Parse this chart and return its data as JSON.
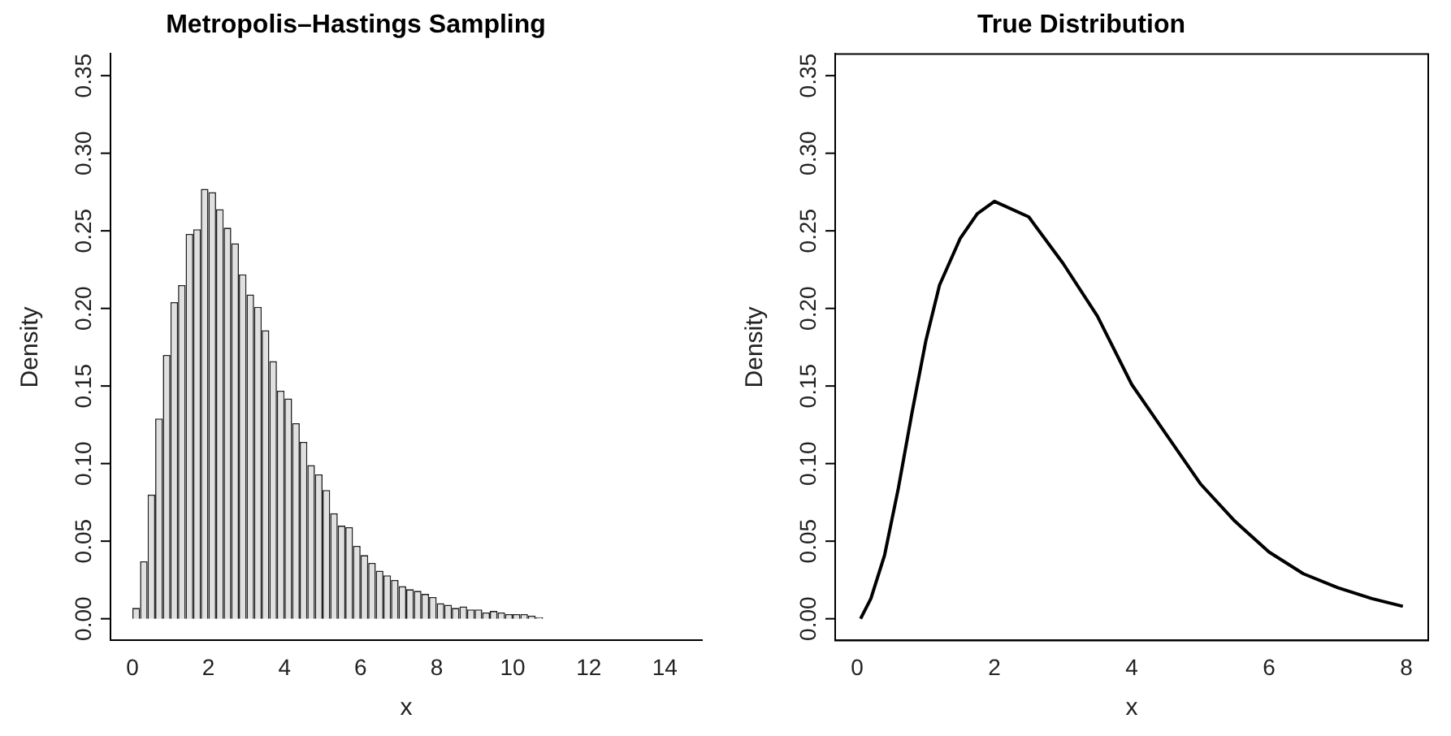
{
  "chart_data": [
    {
      "type": "histogram",
      "title": "Metropolis–Hastings Sampling",
      "xlabel": "x",
      "ylabel": "Density",
      "color": "#e0e0e0",
      "bins": [
        0,
        0.2,
        0.4,
        0.6,
        0.8,
        1,
        1.2,
        1.4,
        1.6,
        1.8,
        2,
        2.2,
        2.4,
        2.6,
        2.8,
        3,
        3.2,
        3.4,
        3.6,
        3.8,
        4,
        4.2,
        4.4,
        4.6,
        4.8,
        5,
        5.2,
        5.4,
        5.6,
        5.8,
        6,
        6.2,
        6.4,
        6.6,
        6.8,
        7,
        7.2,
        7.4,
        7.6,
        7.8,
        8,
        8.2,
        8.4,
        8.6,
        8.8,
        9,
        9.2,
        9.4,
        9.6,
        9.8,
        10,
        10.2,
        10.4,
        10.6,
        10.8,
        11,
        11.2,
        11.4,
        11.6,
        11.8,
        12,
        12.2,
        12.4,
        12.6,
        12.8,
        13,
        13.2,
        13.4,
        13.6,
        13.8,
        14,
        14.2,
        14.4
      ],
      "values": [
        0.007,
        0.037,
        0.08,
        0.129,
        0.17,
        0.204,
        0.215,
        0.248,
        0.251,
        0.277,
        0.275,
        0.264,
        0.252,
        0.242,
        0.222,
        0.209,
        0.201,
        0.186,
        0.166,
        0.147,
        0.142,
        0.126,
        0.114,
        0.099,
        0.093,
        0.083,
        0.068,
        0.06,
        0.059,
        0.047,
        0.041,
        0.036,
        0.031,
        0.028,
        0.025,
        0.021,
        0.019,
        0.018,
        0.016,
        0.014,
        0.01,
        0.009,
        0.007,
        0.008,
        0.006,
        0.006,
        0.004,
        0.005,
        0.004,
        0.003,
        0.003,
        0.003,
        0.002,
        0.001,
        0,
        0,
        0,
        0,
        0,
        0,
        0,
        0,
        0,
        0,
        0,
        0,
        0,
        0,
        0,
        0,
        0,
        0
      ],
      "xlim": [
        -0.576,
        14.976
      ],
      "xticks": [
        0,
        2,
        4,
        6,
        8,
        10,
        12,
        14
      ],
      "ylim": [
        -0.014,
        0.364
      ],
      "yticks": [
        {
          "value": 0,
          "label": "0.00"
        },
        {
          "value": 0.05,
          "label": "0.05"
        },
        {
          "value": 0.1,
          "label": "0.10"
        },
        {
          "value": 0.15,
          "label": "0.15"
        },
        {
          "value": 0.2,
          "label": "0.20"
        },
        {
          "value": 0.25,
          "label": "0.25"
        },
        {
          "value": 0.3,
          "label": "0.30"
        },
        {
          "value": 0.35,
          "label": "0.35"
        }
      ]
    },
    {
      "type": "line",
      "title": "True Distribution",
      "xlabel": "x",
      "ylabel": "Density",
      "color": "#000000",
      "x": [
        0.05,
        0.2,
        0.4,
        0.6,
        0.8,
        1.0,
        1.2,
        1.5,
        1.75,
        2.0,
        2.5,
        3.0,
        3.5,
        4.0,
        4.5,
        5.0,
        5.5,
        6.0,
        6.5,
        7.0,
        7.5,
        7.95
      ],
      "values": [
        0,
        0.013,
        0.041,
        0.084,
        0.133,
        0.179,
        0.215,
        0.245,
        0.261,
        0.269,
        0.259,
        0.229,
        0.195,
        0.151,
        0.119,
        0.087,
        0.063,
        0.043,
        0.029,
        0.02,
        0.013,
        0.008
      ],
      "xlim": [
        -0.32,
        8.32
      ],
      "xticks": [
        0,
        2,
        4,
        6,
        8
      ],
      "ylim": [
        -0.014,
        0.364
      ],
      "yticks": [
        {
          "value": 0,
          "label": "0.00"
        },
        {
          "value": 0.05,
          "label": "0.05"
        },
        {
          "value": 0.1,
          "label": "0.10"
        },
        {
          "value": 0.15,
          "label": "0.15"
        },
        {
          "value": 0.2,
          "label": "0.20"
        },
        {
          "value": 0.25,
          "label": "0.25"
        },
        {
          "value": 0.3,
          "label": "0.30"
        },
        {
          "value": 0.35,
          "label": "0.35"
        }
      ]
    }
  ]
}
